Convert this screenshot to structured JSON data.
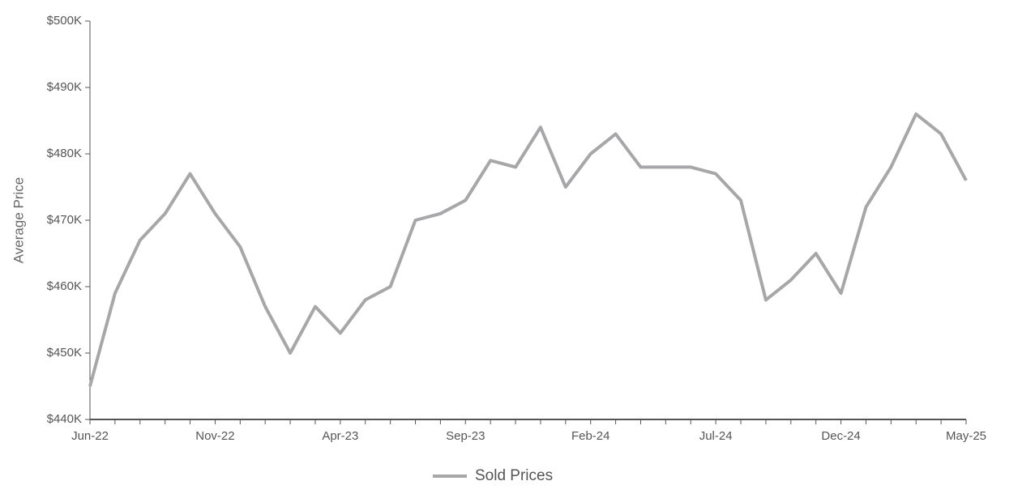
{
  "chart_data": {
    "type": "line",
    "y_label": "Average Price",
    "categories": [
      "Jun-22",
      null,
      null,
      null,
      null,
      "Nov-22",
      null,
      null,
      null,
      null,
      "Apr-23",
      null,
      null,
      null,
      null,
      "Sep-23",
      null,
      null,
      null,
      null,
      "Feb-24",
      null,
      null,
      null,
      null,
      "Jul-24",
      null,
      null,
      null,
      null,
      "Dec-24",
      null,
      null,
      null,
      null,
      "May-25"
    ],
    "series": [
      {
        "name": "Sold Prices",
        "color": "#a7a7aa",
        "values": [
          445000,
          459000,
          467000,
          471000,
          477000,
          471000,
          466000,
          457000,
          450000,
          457000,
          453000,
          458000,
          460000,
          470000,
          471000,
          473000,
          479000,
          478000,
          484000,
          475000,
          480000,
          483000,
          478000,
          478000,
          478000,
          477000,
          473000,
          458000,
          461000,
          465000,
          459000,
          472000,
          478000,
          486000,
          483000,
          476000
        ]
      }
    ],
    "ylim": [
      440000,
      500000
    ],
    "yticks": [
      {
        "value": 440000,
        "label": "$440K"
      },
      {
        "value": 450000,
        "label": "$450K"
      },
      {
        "value": 460000,
        "label": "$460K"
      },
      {
        "value": 470000,
        "label": "$470K"
      },
      {
        "value": 480000,
        "label": "$480K"
      },
      {
        "value": 490000,
        "label": "$490K"
      },
      {
        "value": 500000,
        "label": "$500K"
      }
    ],
    "legend": "bottom"
  }
}
